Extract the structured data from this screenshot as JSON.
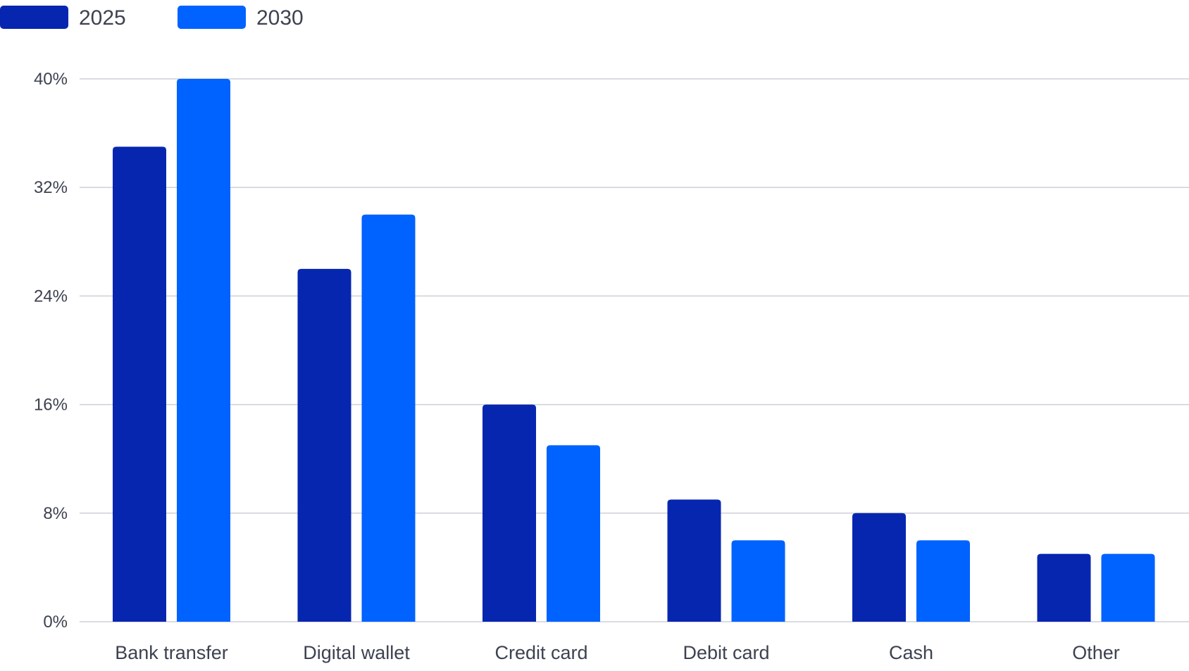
{
  "chart_data": {
    "type": "bar",
    "title": "",
    "xlabel": "",
    "ylabel": "",
    "categories": [
      "Bank transfer",
      "Digital wallet",
      "Credit card",
      "Debit card",
      "Cash",
      "Other"
    ],
    "series": [
      {
        "name": "2025",
        "color": "#0726b0",
        "values": [
          35,
          26,
          16,
          9,
          8,
          5
        ]
      },
      {
        "name": "2030",
        "color": "#0062ff",
        "values": [
          40,
          30,
          13,
          6,
          6,
          5
        ]
      }
    ],
    "ylim": [
      0,
      40
    ],
    "yticks": [
      0,
      8,
      16,
      24,
      32,
      40
    ],
    "ytick_labels": [
      "0%",
      "8%",
      "16%",
      "24%",
      "32%",
      "40%"
    ],
    "grid": true,
    "legend_position": "top-left"
  }
}
